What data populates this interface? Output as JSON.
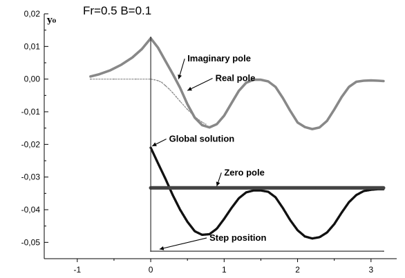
{
  "chart_data": {
    "type": "scatter",
    "title": "Fr=0.5 B=0.1",
    "xlabel": "",
    "ylabel": "y₀",
    "xlim": [
      -1.45,
      3.35
    ],
    "ylim": [
      -0.055,
      0.02
    ],
    "xticks": [
      -1,
      0,
      1,
      2,
      3
    ],
    "xtick_labels": [
      "-1",
      "0",
      "1",
      "2",
      "3"
    ],
    "yticks": [
      0.02,
      0.01,
      0.0,
      -0.01,
      -0.02,
      -0.03,
      -0.04,
      -0.05
    ],
    "ytick_labels": [
      "0,02",
      "0,01",
      "0,00",
      "-0,01",
      "-0,02",
      "-0,03",
      "-0,04",
      "-0,05"
    ],
    "grid": false,
    "series": [
      {
        "name": "Imaginary pole",
        "color": "#888888",
        "x": [
          -0.82,
          -0.7,
          -0.55,
          -0.4,
          -0.25,
          -0.12,
          0.0,
          0.1,
          0.2,
          0.3,
          0.4,
          0.5,
          0.6,
          0.7,
          0.8,
          0.9,
          1.0,
          1.1,
          1.2,
          1.3,
          1.4,
          1.5,
          1.6,
          1.7,
          1.8,
          1.9,
          2.0,
          2.1,
          2.2,
          2.3,
          2.4,
          2.5,
          2.6,
          2.7,
          2.8,
          2.9,
          3.0,
          3.1,
          3.17
        ],
        "y": [
          0.0008,
          0.0015,
          0.0027,
          0.0044,
          0.0066,
          0.0092,
          0.0125,
          0.0096,
          0.0056,
          0.0016,
          -0.0027,
          -0.0077,
          -0.0118,
          -0.0141,
          -0.0148,
          -0.0138,
          -0.0112,
          -0.0074,
          -0.0036,
          -0.0011,
          -0.0002,
          -0.0002,
          -0.0007,
          -0.0024,
          -0.0058,
          -0.0097,
          -0.0133,
          -0.0147,
          -0.0153,
          -0.0148,
          -0.0128,
          -0.0093,
          -0.0055,
          -0.0024,
          -0.0008,
          -0.0005,
          -0.0004,
          -0.0005,
          -0.0006
        ]
      },
      {
        "name": "Real pole",
        "color": "#888888",
        "x": [
          -0.82,
          -0.5,
          -0.2,
          0.0,
          0.05,
          0.1,
          0.15,
          0.2,
          0.25,
          0.3,
          0.35,
          0.4,
          0.5,
          0.6,
          0.7,
          0.75
        ],
        "y": [
          0.0,
          0.0,
          0.0,
          0.0,
          -0.0002,
          -0.0005,
          -0.001,
          -0.002,
          -0.003,
          -0.0042,
          -0.0055,
          -0.0068,
          -0.0093,
          -0.0115,
          -0.0132,
          -0.0138
        ]
      },
      {
        "name": "Global solution",
        "color": "#111111",
        "x": [
          0.0,
          0.1,
          0.2,
          0.3,
          0.4,
          0.5,
          0.6,
          0.7,
          0.8,
          0.9,
          1.0,
          1.1,
          1.2,
          1.3,
          1.4,
          1.5,
          1.6,
          1.7,
          1.8,
          1.9,
          2.0,
          2.1,
          2.2,
          2.3,
          2.4,
          2.5,
          2.6,
          2.7,
          2.8,
          2.9,
          3.0,
          3.1,
          3.17
        ],
        "y": [
          -0.021,
          -0.0258,
          -0.0305,
          -0.0355,
          -0.04,
          -0.0437,
          -0.0466,
          -0.0477,
          -0.0475,
          -0.0458,
          -0.0428,
          -0.0395,
          -0.0365,
          -0.0347,
          -0.0341,
          -0.0341,
          -0.0345,
          -0.0362,
          -0.0395,
          -0.0432,
          -0.0463,
          -0.0482,
          -0.0488,
          -0.0484,
          -0.047,
          -0.0444,
          -0.0409,
          -0.0377,
          -0.0355,
          -0.0343,
          -0.0339,
          -0.0337,
          -0.0337
        ]
      },
      {
        "name": "Zero pole",
        "color": "#444444",
        "x": [
          0.0,
          0.25,
          0.5,
          0.75,
          1.0,
          1.25,
          1.5,
          1.75,
          2.0,
          2.25,
          2.5,
          2.75,
          3.0,
          3.17
        ],
        "y": [
          -0.0333,
          -0.0333,
          -0.0333,
          -0.0333,
          -0.0333,
          -0.0333,
          -0.0333,
          -0.0333,
          -0.0333,
          -0.0333,
          -0.0333,
          -0.0333,
          -0.0333,
          -0.0333
        ]
      },
      {
        "name": "Step position",
        "color": "#333333",
        "x": [
          0.0,
          0.0,
          3.17
        ],
        "y": [
          0.0128,
          -0.0527,
          -0.0527
        ]
      }
    ],
    "annotations": [
      {
        "text": "Imaginary pole",
        "x": 0.5,
        "y": 0.0054,
        "target_x": 0.38,
        "target_y": 0.0
      },
      {
        "text": "Real pole",
        "x": 0.88,
        "y": -0.0006,
        "target_x": 0.5,
        "target_y": -0.0035
      },
      {
        "text": "Global solution",
        "x": 0.25,
        "y": -0.0192,
        "target_x": 0.02,
        "target_y": -0.0205
      },
      {
        "text": "Zero pole",
        "x": 1.0,
        "y": -0.0295,
        "target_x": 0.9,
        "target_y": -0.0328
      },
      {
        "text": "Step position",
        "x": 0.8,
        "y": -0.0495,
        "target_x": 0.12,
        "target_y": -0.0521
      }
    ]
  }
}
